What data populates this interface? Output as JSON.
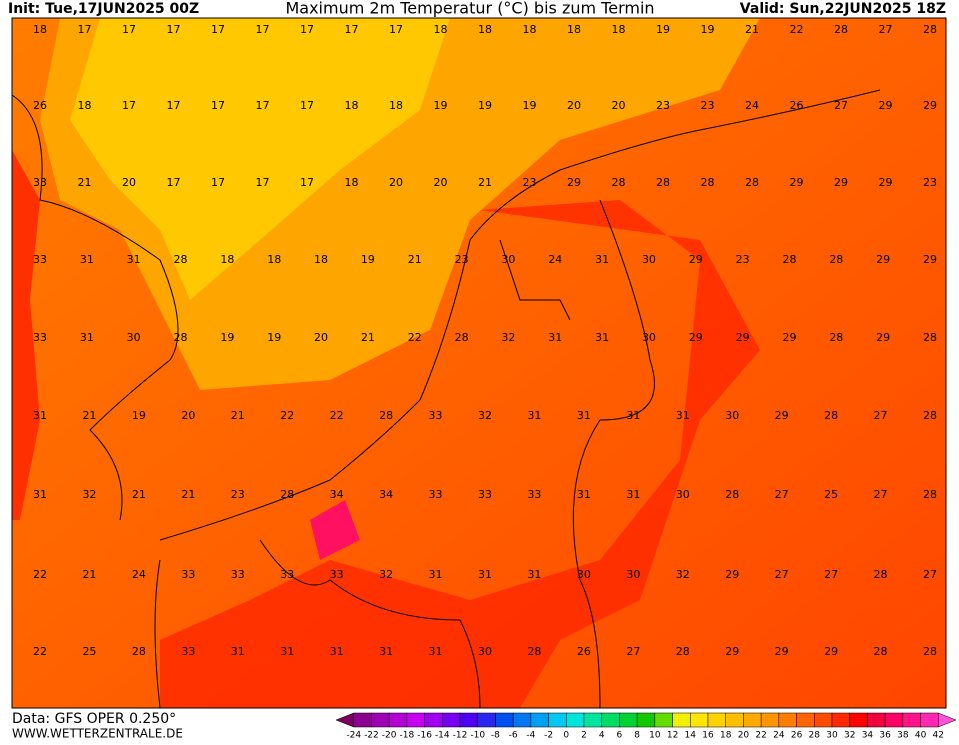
{
  "header": {
    "init": "Init: Tue,17JUN2025 00Z",
    "title": "Maximum 2m Temperatur (°C) bis zum Termin",
    "valid": "Valid: Sun,22JUN2025 18Z"
  },
  "footer": {
    "data": "Data: GFS OPER 0.250°",
    "site": "WWW.WETTERZENTRALE.DE"
  },
  "map": {
    "rows": [
      [
        18,
        17,
        17,
        17,
        17,
        17,
        17,
        17,
        17,
        18,
        18,
        18,
        18,
        18,
        19,
        19,
        21,
        22,
        28,
        27,
        28
      ],
      [
        26,
        18,
        17,
        17,
        17,
        17,
        17,
        18,
        18,
        19,
        19,
        19,
        20,
        20,
        23,
        23,
        24,
        26,
        27,
        29,
        29
      ],
      [
        33,
        21,
        20,
        17,
        17,
        17,
        17,
        18,
        20,
        20,
        21,
        23,
        29,
        28,
        28,
        28,
        28,
        29,
        29,
        29,
        23
      ],
      [
        33,
        31,
        31,
        28,
        18,
        18,
        18,
        19,
        21,
        23,
        30,
        24,
        31,
        30,
        29,
        23,
        28,
        28,
        29,
        29
      ],
      [
        33,
        31,
        30,
        28,
        19,
        19,
        20,
        21,
        22,
        28,
        32,
        31,
        31,
        30,
        29,
        29,
        29,
        28,
        29,
        28
      ],
      [
        31,
        21,
        19,
        20,
        21,
        22,
        22,
        28,
        33,
        32,
        31,
        31,
        31,
        31,
        30,
        29,
        28,
        27,
        28
      ],
      [
        31,
        32,
        21,
        21,
        23,
        28,
        34,
        34,
        33,
        33,
        33,
        31,
        31,
        30,
        28,
        27,
        25,
        27,
        28
      ],
      [
        22,
        21,
        24,
        33,
        33,
        33,
        33,
        32,
        31,
        31,
        31,
        30,
        30,
        32,
        29,
        27,
        27,
        28,
        27
      ],
      [
        22,
        25,
        28,
        33,
        31,
        31,
        31,
        31,
        31,
        30,
        28,
        26,
        27,
        28,
        29,
        29,
        29,
        28,
        28
      ]
    ]
  },
  "colorbar": {
    "labels": [
      -24,
      -22,
      -20,
      -18,
      -16,
      -14,
      -12,
      -10,
      -8,
      -6,
      -4,
      -2,
      0,
      2,
      4,
      6,
      8,
      10,
      12,
      14,
      16,
      18,
      20,
      22,
      24,
      26,
      28,
      30,
      32,
      34,
      36,
      38,
      40,
      42
    ],
    "colors": [
      "#7a0060",
      "#8c0090",
      "#a000b4",
      "#b400d2",
      "#c800f0",
      "#a000f0",
      "#7800f0",
      "#5000f0",
      "#2828f0",
      "#0050f0",
      "#0078f0",
      "#00a0f0",
      "#00c8f0",
      "#00e6dc",
      "#00e6a0",
      "#00dc64",
      "#00d232",
      "#14c800",
      "#64dc00",
      "#f0f000",
      "#ffe600",
      "#ffd200",
      "#ffbe00",
      "#ffaa00",
      "#ff9600",
      "#ff7d00",
      "#ff6400",
      "#ff4b00",
      "#ff2800",
      "#ff0000",
      "#f0003c",
      "#ff0064",
      "#ff148c",
      "#ff28b4",
      "#ff50dc"
    ]
  }
}
